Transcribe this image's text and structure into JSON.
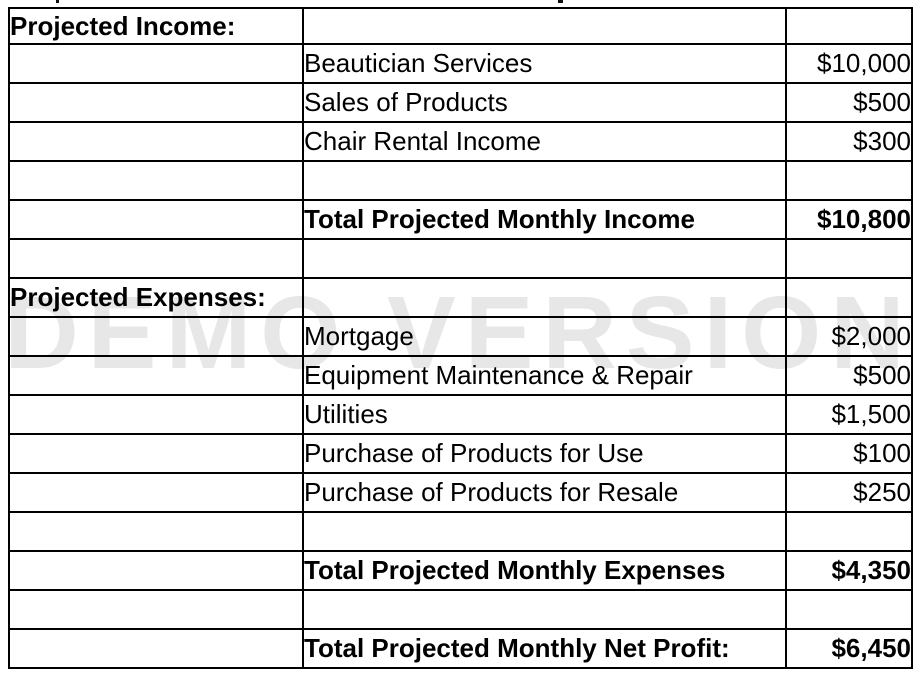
{
  "watermark": {
    "text": "DEMO VERSION",
    "color": "#e7e7e7"
  },
  "table": {
    "rows": [
      {
        "label": "Projected Income:",
        "item": "",
        "amount": ""
      },
      {
        "label": "",
        "item": "Beautician Services",
        "amount": "$10,000"
      },
      {
        "label": "",
        "item": "Sales of Products",
        "amount": "$500"
      },
      {
        "label": "",
        "item": "Chair Rental Income",
        "amount": "$300"
      },
      {
        "label": "",
        "item": "",
        "amount": ""
      },
      {
        "label": "",
        "item": "Total Projected Monthly Income",
        "amount": "$10,800"
      },
      {
        "label": "",
        "item": "",
        "amount": ""
      },
      {
        "label": "Projected Expenses:",
        "item": "",
        "amount": ""
      },
      {
        "label": "",
        "item": "Mortgage",
        "amount": "$2,000"
      },
      {
        "label": "",
        "item": "Equipment Maintenance & Repair",
        "amount": "$500"
      },
      {
        "label": "",
        "item": "Utilities",
        "amount": "$1,500"
      },
      {
        "label": "",
        "item": "Purchase of Products for Use",
        "amount": "$100"
      },
      {
        "label": "",
        "item": "Purchase of Products for Resale",
        "amount": "$250"
      },
      {
        "label": "",
        "item": "",
        "amount": ""
      },
      {
        "label": "",
        "item": "Total Projected Monthly Expenses",
        "amount": "$4,350"
      },
      {
        "label": "",
        "item": "",
        "amount": ""
      },
      {
        "label": "",
        "item": "Total Projected Monthly Net Profit:",
        "amount": "$6,450"
      }
    ]
  }
}
